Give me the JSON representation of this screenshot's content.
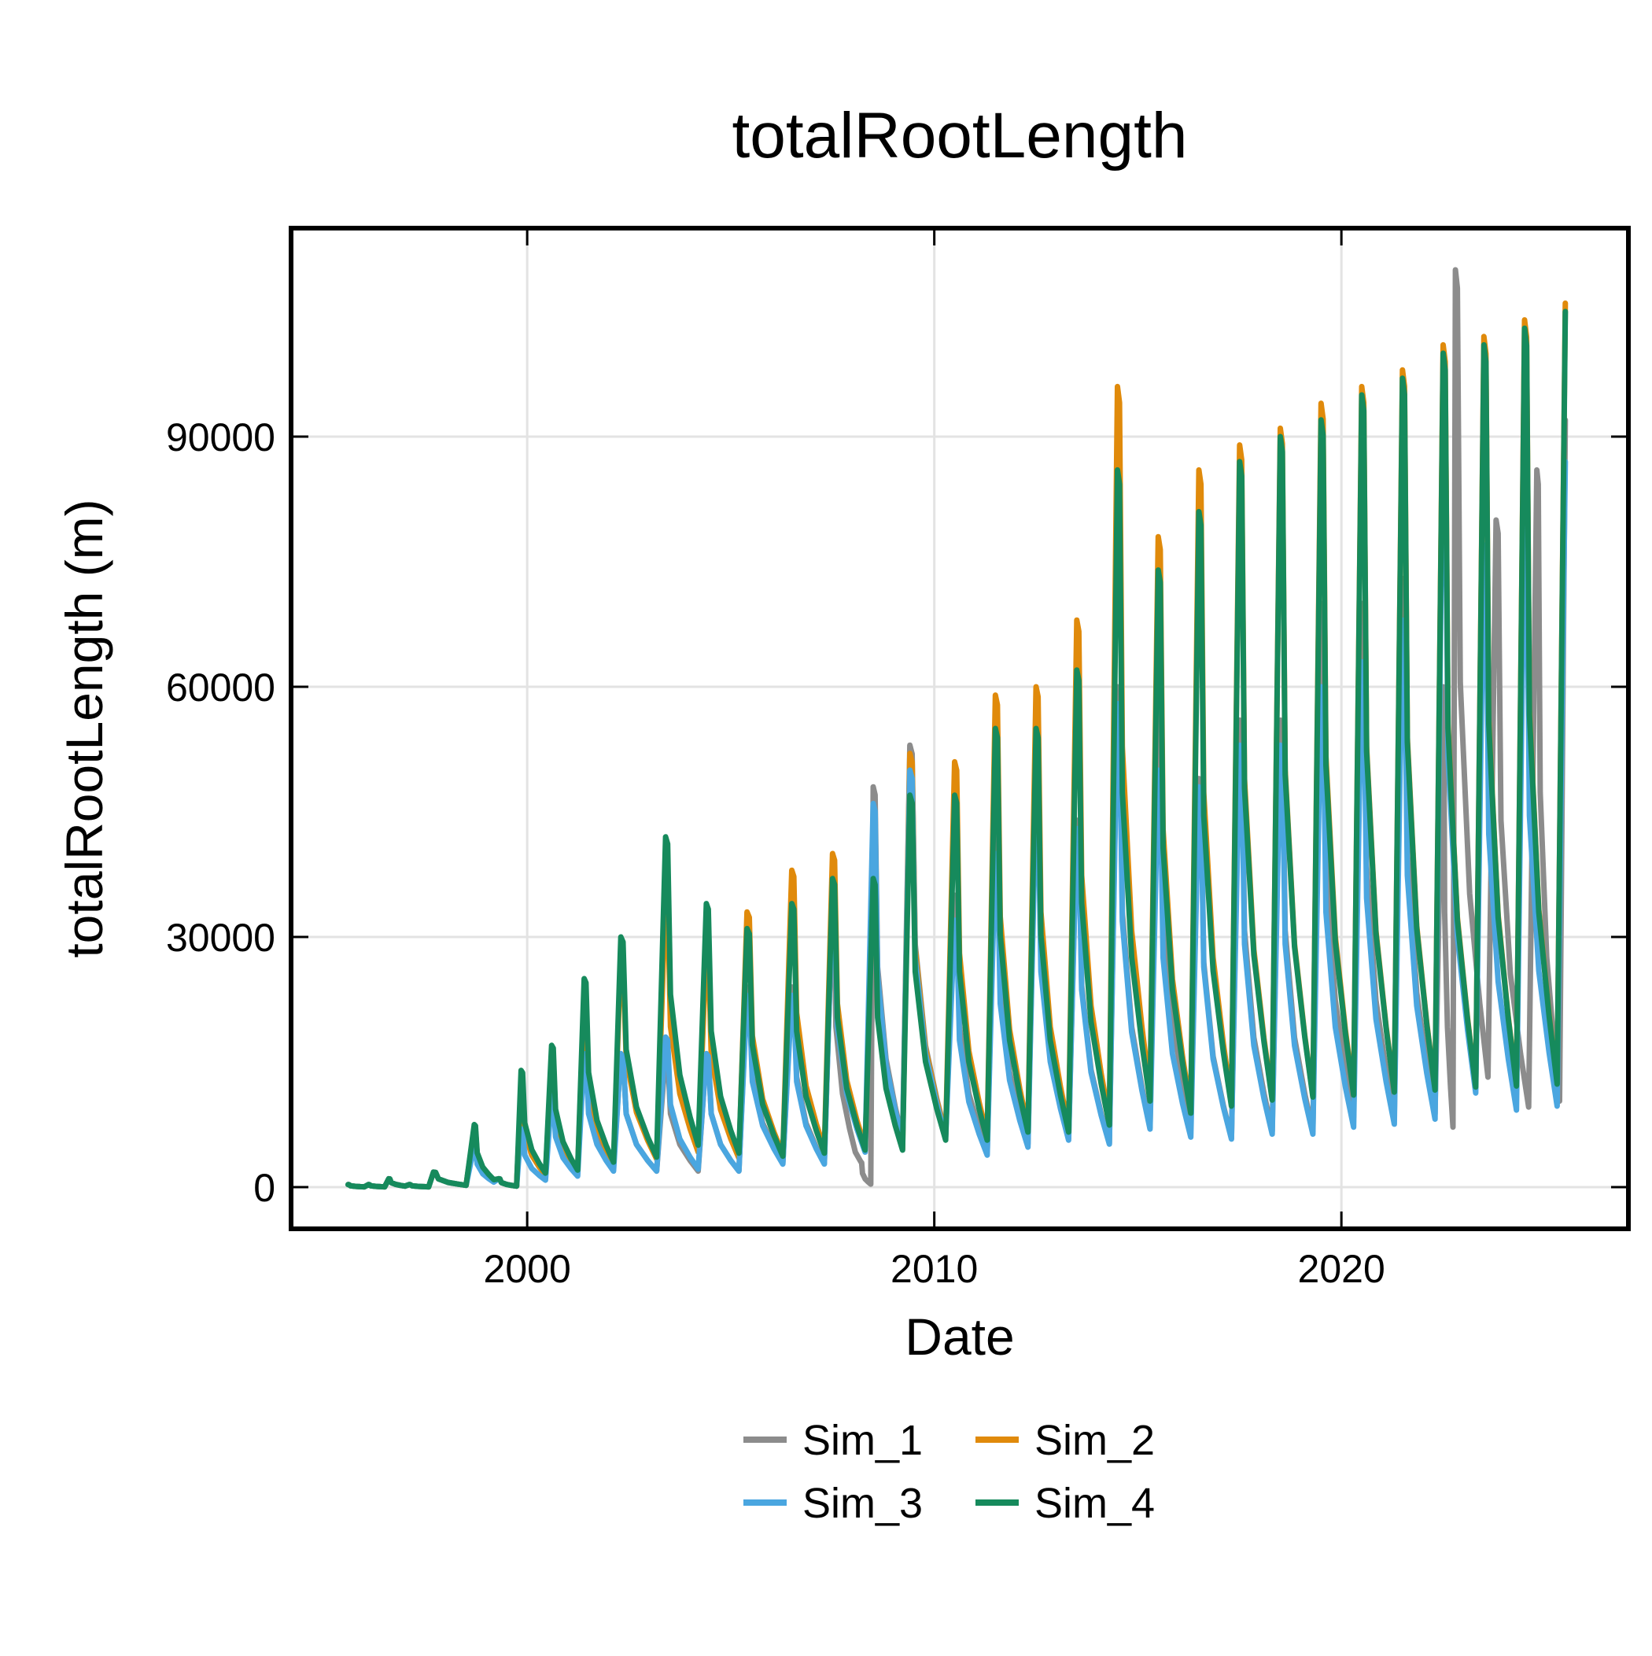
{
  "chart_data": {
    "type": "line",
    "title": "totalRootLength",
    "xlabel": "Date",
    "ylabel": "totalRootLength (m)",
    "xlim": [
      1994.2,
      2027.05
    ],
    "ylim": [
      -5000,
      115000
    ],
    "x_ticks": [
      2000,
      2010,
      2020
    ],
    "x_tick_labels": [
      "2000",
      "2010",
      "2020"
    ],
    "y_ticks": [
      0,
      30000,
      60000,
      90000
    ],
    "y_tick_labels": [
      "0",
      "30000",
      "60000",
      "90000"
    ],
    "grid": true,
    "legend_position": "bottom-center",
    "colors": {
      "Sim_1": "#8c8c8c",
      "Sim_2": "#e08a0b",
      "Sim_3": "#4aa6e0",
      "Sim_4": "#168a5c"
    },
    "series": [
      {
        "name": "Sim_1",
        "color": "#8c8c8c",
        "cycle_peaks": [
          300,
          600,
          1000,
          7000,
          12000,
          15000,
          21000,
          26000,
          35000,
          16000,
          24000,
          24000,
          35000,
          48000,
          53000,
          35000,
          45000,
          50000,
          44000,
          60000,
          63000,
          49000,
          56000,
          56000,
          70000,
          70000,
          73000,
          110000,
          80000,
          86000,
          92000
        ],
        "cycle_troughs": [
          0,
          0,
          0,
          800,
          1500,
          2500,
          3500,
          3000,
          3500,
          4000,
          5000,
          5500,
          2500,
          6000,
          8000,
          8500,
          9000,
          6500,
          10000,
          7000,
          10000,
          8500,
          8000,
          8500,
          9500,
          10500,
          15500,
          12000,
          10500,
          0,
          0
        ],
        "x": [
          1995.6,
          1996.1,
          1996.6,
          1997.1,
          1997.7,
          1998.7,
          1999.3,
          1999.85,
          2000.6,
          2001.4,
          2002.3,
          2003.4,
          2004.4,
          2005.4,
          2006.5,
          2007.5,
          2008.2,
          2008.5,
          2009.4,
          2010.5,
          2011.5,
          2012.5,
          2013.5,
          2014.5,
          2015.5,
          2016.5,
          2017.5,
          2018.5,
          2019.5,
          2020.5,
          2021.5,
          2022.5,
          2022.8,
          2023.8,
          2024.8,
          2025.5
        ],
        "y": [
          300,
          300,
          1000,
          300,
          1800,
          7000,
          1000,
          12000,
          15000,
          21000,
          16000,
          16000,
          16000,
          24000,
          24000,
          35000,
          3000,
          48000,
          53000,
          35000,
          43000,
          49000,
          44000,
          60000,
          63000,
          49000,
          56000,
          56000,
          70000,
          70000,
          73000,
          60000,
          110000,
          80000,
          86000,
          92000
        ]
      },
      {
        "name": "Sim_2",
        "color": "#e08a0b",
        "x": [
          1995.6,
          1996.1,
          1996.6,
          1997.1,
          1997.7,
          1998.7,
          1999.3,
          1999.85,
          2000.6,
          2001.4,
          2002.3,
          2003.4,
          2004.4,
          2005.4,
          2006.5,
          2007.5,
          2008.5,
          2009.4,
          2010.5,
          2011.5,
          2012.5,
          2013.5,
          2014.5,
          2015.5,
          2016.5,
          2017.5,
          2018.5,
          2019.5,
          2020.5,
          2021.5,
          2022.5,
          2023.5,
          2024.5,
          2025.5
        ],
        "y": [
          300,
          300,
          1000,
          300,
          1800,
          7000,
          1000,
          12000,
          16000,
          23000,
          28000,
          35000,
          29000,
          33000,
          38000,
          40000,
          38000,
          52000,
          51000,
          59000,
          60000,
          68000,
          96000,
          78000,
          86000,
          89000,
          91000,
          94000,
          96000,
          98000,
          101000,
          102000,
          104000,
          106000
        ]
      },
      {
        "name": "Sim_3",
        "color": "#4aa6e0",
        "x": [
          1995.6,
          1996.1,
          1996.6,
          1997.1,
          1997.7,
          1998.7,
          1999.3,
          1999.85,
          2000.6,
          2001.4,
          2002.3,
          2003.4,
          2004.4,
          2005.4,
          2006.5,
          2007.5,
          2008.5,
          2009.4,
          2010.5,
          2011.5,
          2012.5,
          2013.5,
          2014.5,
          2015.5,
          2016.5,
          2017.5,
          2018.5,
          2019.5,
          2020.5,
          2021.5,
          2022.5,
          2023.5,
          2024.5,
          2025.5
        ],
        "y": [
          300,
          300,
          1000,
          300,
          1800,
          5000,
          1000,
          7000,
          11000,
          16000,
          16000,
          18000,
          16000,
          23000,
          23000,
          35000,
          46000,
          50000,
          32000,
          40000,
          47000,
          43000,
          58000,
          50000,
          48000,
          53000,
          53000,
          60000,
          63000,
          68000,
          94000,
          77000,
          81000,
          87000
        ]
      },
      {
        "name": "Sim_4",
        "color": "#168a5c",
        "x": [
          1995.6,
          1996.1,
          1996.6,
          1997.1,
          1997.7,
          1998.7,
          1999.3,
          1999.85,
          2000.6,
          2001.4,
          2002.3,
          2003.4,
          2004.4,
          2005.4,
          2006.5,
          2007.5,
          2008.5,
          2009.4,
          2010.5,
          2011.5,
          2012.5,
          2013.5,
          2014.5,
          2015.5,
          2016.5,
          2017.5,
          2018.5,
          2019.5,
          2020.5,
          2021.5,
          2022.5,
          2023.5,
          2024.5,
          2025.5
        ],
        "y": [
          300,
          300,
          1000,
          300,
          1800,
          7500,
          1000,
          14000,
          17000,
          25000,
          30000,
          42000,
          34000,
          31000,
          34000,
          37000,
          37000,
          47000,
          47000,
          55000,
          55000,
          62000,
          86000,
          74000,
          81000,
          87000,
          90000,
          92000,
          95000,
          97000,
          100000,
          101000,
          103000,
          105000
        ]
      }
    ]
  }
}
